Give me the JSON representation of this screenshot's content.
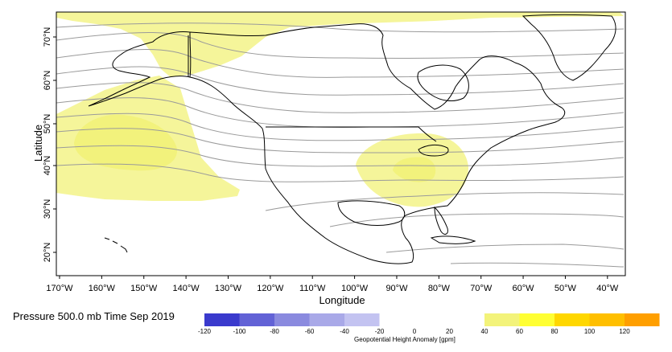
{
  "axes": {
    "xlabel": "Longitude",
    "ylabel": "Latitude",
    "lon_ticks": [
      "170°W",
      "160°W",
      "150°W",
      "140°W",
      "130°W",
      "120°W",
      "110°W",
      "100°W",
      "90°W",
      "80°W",
      "70°W",
      "60°W",
      "50°W",
      "40°W"
    ],
    "lat_ticks": [
      "70°N",
      "60°N",
      "50°N",
      "40°N",
      "30°N",
      "20°N"
    ]
  },
  "caption": "Pressure 500.0 mb Time Sep 2019",
  "colorbar": {
    "label": "Geopotential Height Anomaly [gpm]",
    "ticks": [
      "-120",
      "-100",
      "-80",
      "-60",
      "-40",
      "-20",
      "0",
      "20",
      "40",
      "60",
      "80",
      "100",
      "120"
    ],
    "neg_colors": [
      "#3a3acd",
      "#6262d6",
      "#8a8adf",
      "#a9a9e8",
      "#c3c3f1"
    ],
    "pos_colors": [
      "#f3f37a",
      "#ffff33",
      "#ffd700",
      "#ffbf00",
      "#ff9f00"
    ]
  },
  "colors": {
    "anomaly_light": "#f5f59a",
    "anomaly_mid": "#f2f27c",
    "contour": "#9a9a9a",
    "coast": "#000000"
  }
}
